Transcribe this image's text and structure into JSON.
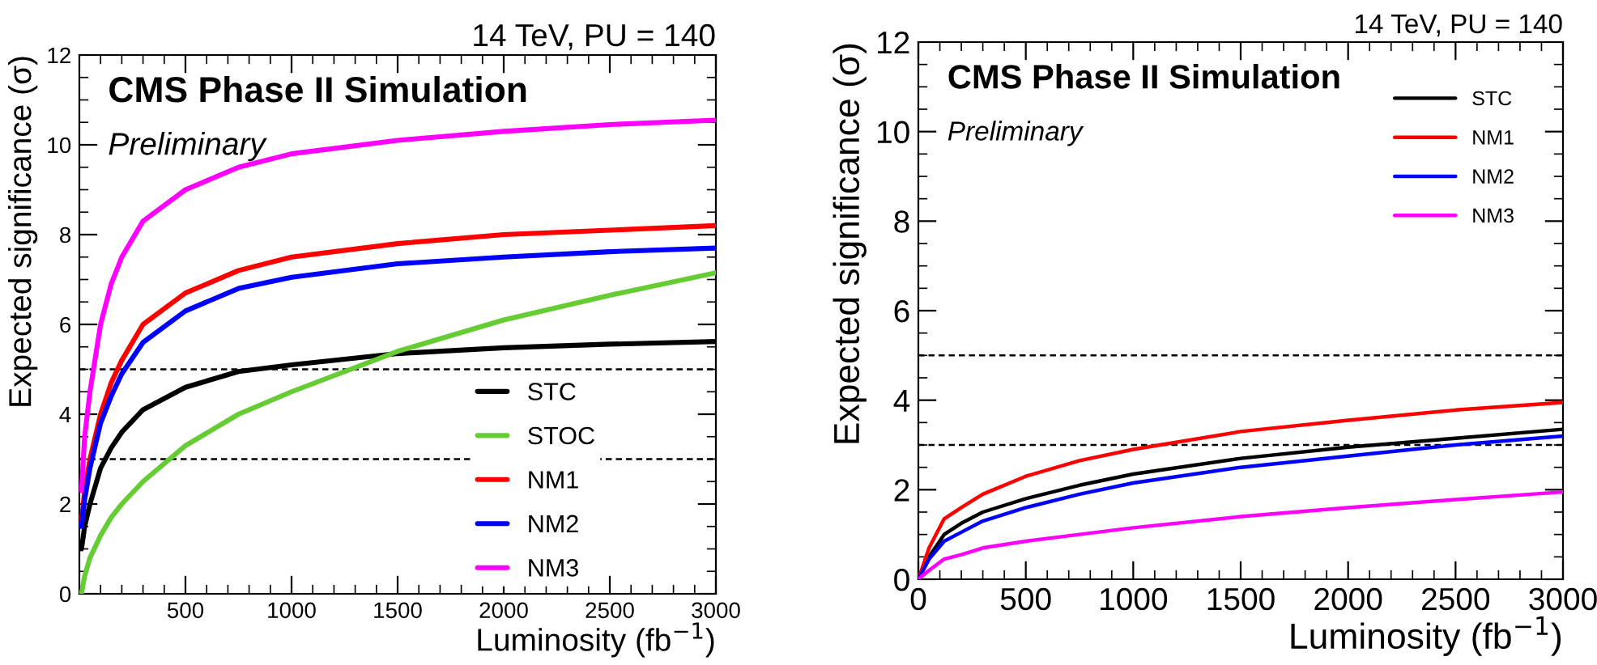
{
  "chart_data": [
    {
      "type": "line",
      "title": "14 TeV, PU = 140",
      "xlabel": "Luminosity (fb$^{−1}$)",
      "ylabel": "Expected significance (σ)",
      "annotations": [
        "CMS Phase II Simulation",
        "Preliminary"
      ],
      "x": [
        10,
        25,
        50,
        100,
        150,
        200,
        300,
        500,
        750,
        1000,
        1500,
        2000,
        2500,
        3000
      ],
      "series": [
        {
          "name": "STC",
          "color": "#000000",
          "values": [
            1.0,
            1.5,
            2.0,
            2.8,
            3.25,
            3.6,
            4.1,
            4.6,
            4.95,
            5.1,
            5.35,
            5.48,
            5.56,
            5.62
          ]
        },
        {
          "name": "STOC",
          "color": "#66cc33",
          "values": [
            0.0,
            0.4,
            0.8,
            1.3,
            1.7,
            2.0,
            2.5,
            3.3,
            4.0,
            4.5,
            5.4,
            6.1,
            6.65,
            7.15
          ]
        },
        {
          "name": "NM1",
          "color": "#ff0000",
          "values": [
            1.6,
            2.3,
            3.0,
            4.0,
            4.7,
            5.2,
            6.0,
            6.7,
            7.2,
            7.5,
            7.8,
            8.0,
            8.1,
            8.2
          ]
        },
        {
          "name": "NM2",
          "color": "#0000ff",
          "values": [
            1.5,
            2.1,
            2.8,
            3.8,
            4.4,
            4.9,
            5.6,
            6.3,
            6.8,
            7.05,
            7.35,
            7.5,
            7.62,
            7.7
          ]
        },
        {
          "name": "NM3",
          "color": "#ff00ff",
          "values": [
            2.3,
            3.5,
            4.5,
            6.0,
            6.9,
            7.5,
            8.3,
            9.0,
            9.5,
            9.8,
            10.1,
            10.3,
            10.45,
            10.55
          ]
        }
      ],
      "xlim": [
        0,
        3000
      ],
      "xticks": [
        500,
        1000,
        1500,
        2000,
        2500,
        3000
      ],
      "ylim": [
        0,
        12
      ],
      "yticks": [
        0,
        2,
        4,
        6,
        8,
        10,
        12
      ],
      "ref_lines": [
        {
          "axis": "y",
          "value": 5,
          "color": "#000000",
          "line_style": "dashed"
        },
        {
          "axis": "y",
          "value": 3,
          "color": "#000000",
          "line_style": "dashed"
        }
      ],
      "legend": "bottom right",
      "grid": false,
      "marker": "none",
      "line_style": "solid"
    },
    {
      "type": "line",
      "title": "14 TeV, PU = 140",
      "xlabel": "Luminosity (fb$^{−1}$)",
      "ylabel": "Expected significance (σ)",
      "annotations": [
        "CMS Phase II Simulation",
        "Preliminary"
      ],
      "x": [
        0,
        50,
        120,
        200,
        300,
        500,
        750,
        1000,
        1500,
        2000,
        2500,
        3000
      ],
      "series": [
        {
          "name": "STC",
          "color": "#000000",
          "values": [
            0,
            0.5,
            1.0,
            1.25,
            1.5,
            1.8,
            2.1,
            2.35,
            2.7,
            2.95,
            3.15,
            3.35
          ]
        },
        {
          "name": "NM1",
          "color": "#ff0000",
          "values": [
            0,
            0.7,
            1.35,
            1.6,
            1.9,
            2.3,
            2.65,
            2.9,
            3.3,
            3.55,
            3.78,
            3.95
          ]
        },
        {
          "name": "NM2",
          "color": "#0000ff",
          "values": [
            0,
            0.45,
            0.85,
            1.05,
            1.3,
            1.6,
            1.9,
            2.15,
            2.5,
            2.75,
            3.0,
            3.2
          ]
        },
        {
          "name": "NM3",
          "color": "#ff00ff",
          "values": [
            0,
            0.2,
            0.45,
            0.55,
            0.7,
            0.85,
            1.0,
            1.15,
            1.4,
            1.6,
            1.78,
            1.95
          ]
        }
      ],
      "xlim": [
        0,
        3000
      ],
      "xticks": [
        0,
        500,
        1000,
        1500,
        2000,
        2500,
        3000
      ],
      "ylim": [
        0,
        12
      ],
      "yticks": [
        0,
        2,
        4,
        6,
        8,
        10,
        12
      ],
      "ref_lines": [
        {
          "axis": "y",
          "value": 5,
          "color": "#000000",
          "line_style": "dashed"
        },
        {
          "axis": "y",
          "value": 3,
          "color": "#000000",
          "line_style": "dashed"
        }
      ],
      "legend": "top right",
      "grid": false,
      "marker": "none",
      "line_style": "solid"
    }
  ]
}
